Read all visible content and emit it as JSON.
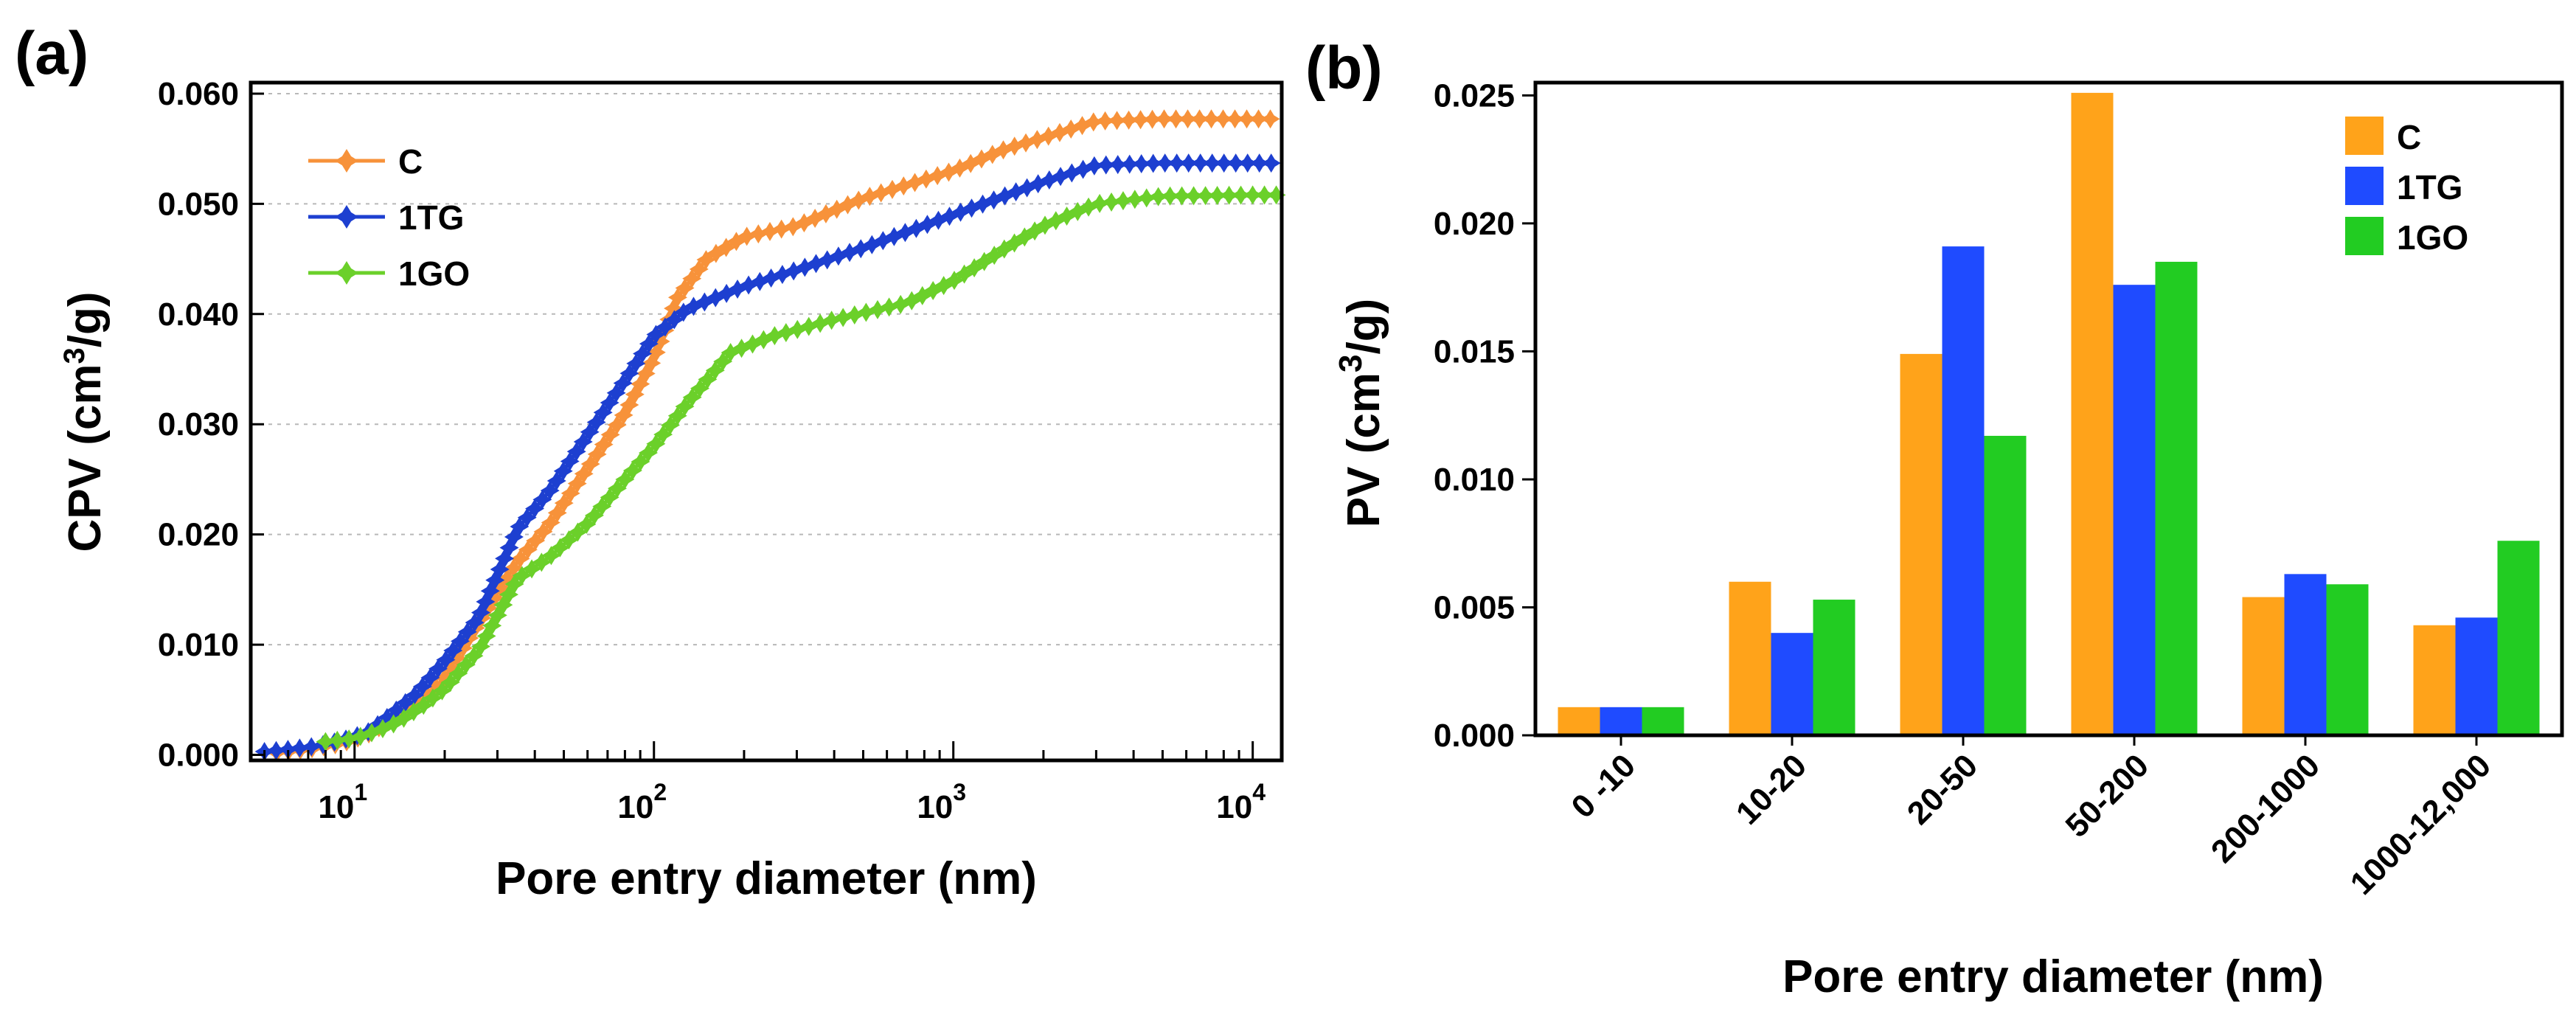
{
  "chart_data": [
    {
      "type": "line",
      "panel_label": "(a)",
      "xlabel": "Pore entry diameter (nm)",
      "ylabel_main": "CPV (cm",
      "ylabel_sup": "3",
      "ylabel_tail": "/g)",
      "x_scale": "log",
      "xlim": [
        4.5,
        12500
      ],
      "ylim": [
        -0.0005,
        0.061
      ],
      "x_ticks": [
        {
          "base": "10",
          "exp": "1",
          "value": 10
        },
        {
          "base": "10",
          "exp": "2",
          "value": 100
        },
        {
          "base": "10",
          "exp": "3",
          "value": 1000
        },
        {
          "base": "10",
          "exp": "4",
          "value": 10000
        }
      ],
      "y_ticks": [
        0.0,
        0.01,
        0.02,
        0.03,
        0.04,
        0.05,
        0.06
      ],
      "y_tick_labels": [
        "0.000",
        "0.010",
        "0.020",
        "0.030",
        "0.040",
        "0.050",
        "0.060"
      ],
      "grid": "horizontal dashed",
      "legend_position": "top-left",
      "series": [
        {
          "name": "C",
          "color": "#F7923A",
          "points": [
            [
              5.5,
              0.0002
            ],
            [
              7,
              0.0005
            ],
            [
              9,
              0.001
            ],
            [
              11,
              0.0018
            ],
            [
              13,
              0.003
            ],
            [
              16,
              0.0045
            ],
            [
              20,
              0.007
            ],
            [
              26,
              0.012
            ],
            [
              35,
              0.0175
            ],
            [
              45,
              0.021
            ],
            [
              60,
              0.026
            ],
            [
              80,
              0.031
            ],
            [
              100,
              0.036
            ],
            [
              120,
              0.0415
            ],
            [
              150,
              0.045
            ],
            [
              200,
              0.047
            ],
            [
              300,
              0.048
            ],
            [
              500,
              0.0505
            ],
            [
              1000,
              0.053
            ],
            [
              1500,
              0.055
            ],
            [
              2000,
              0.056
            ],
            [
              3000,
              0.0575
            ],
            [
              5000,
              0.0577
            ],
            [
              10000,
              0.0577
            ],
            [
              12000,
              0.0577
            ]
          ]
        },
        {
          "name": "1TG",
          "color": "#1D3FD0",
          "points": [
            [
              5,
              0.0003
            ],
            [
              6,
              0.0005
            ],
            [
              7.5,
              0.0008
            ],
            [
              9,
              0.0013
            ],
            [
              11,
              0.002
            ],
            [
              13,
              0.0035
            ],
            [
              16,
              0.0055
            ],
            [
              20,
              0.0085
            ],
            [
              26,
              0.0125
            ],
            [
              35,
              0.0205
            ],
            [
              45,
              0.024
            ],
            [
              60,
              0.029
            ],
            [
              80,
              0.034
            ],
            [
              100,
              0.038
            ],
            [
              130,
              0.0405
            ],
            [
              200,
              0.0425
            ],
            [
              300,
              0.044
            ],
            [
              500,
              0.046
            ],
            [
              1000,
              0.049
            ],
            [
              2000,
              0.052
            ],
            [
              3000,
              0.0535
            ],
            [
              5000,
              0.0537
            ],
            [
              10000,
              0.0537
            ],
            [
              12000,
              0.0537
            ]
          ]
        },
        {
          "name": "1GO",
          "color": "#6BD02A",
          "points": [
            [
              8,
              0.0012
            ],
            [
              10,
              0.0015
            ],
            [
              12,
              0.0022
            ],
            [
              14,
              0.003
            ],
            [
              17,
              0.0045
            ],
            [
              20,
              0.006
            ],
            [
              26,
              0.0095
            ],
            [
              35,
              0.016
            ],
            [
              45,
              0.018
            ],
            [
              60,
              0.021
            ],
            [
              80,
              0.025
            ],
            [
              100,
              0.028
            ],
            [
              130,
              0.032
            ],
            [
              180,
              0.0365
            ],
            [
              250,
              0.038
            ],
            [
              400,
              0.0395
            ],
            [
              700,
              0.041
            ],
            [
              1000,
              0.043
            ],
            [
              1500,
              0.046
            ],
            [
              2000,
              0.048
            ],
            [
              3000,
              0.05
            ],
            [
              5000,
              0.0507
            ],
            [
              10000,
              0.0508
            ],
            [
              12000,
              0.0508
            ]
          ]
        }
      ]
    },
    {
      "type": "bar",
      "panel_label": "(b)",
      "xlabel": "Pore entry diameter (nm)",
      "ylabel_main": "PV (cm",
      "ylabel_sup": "3",
      "ylabel_tail": "/g)",
      "ylim": [
        0,
        0.0255
      ],
      "y_ticks": [
        0.0,
        0.005,
        0.01,
        0.015,
        0.02,
        0.025
      ],
      "y_tick_labels": [
        "0.000",
        "0.005",
        "0.010",
        "0.015",
        "0.020",
        "0.025"
      ],
      "categories": [
        "0 -10",
        "10-20",
        "20-50",
        "50-200",
        "200-1000",
        "1000-12,000"
      ],
      "legend_position": "top-right",
      "series": [
        {
          "name": "C",
          "color": "#FFA31A",
          "values": [
            0.0011,
            0.006,
            0.0149,
            0.0251,
            0.0054,
            0.0043
          ]
        },
        {
          "name": "1TG",
          "color": "#1F4BFF",
          "values": [
            0.0011,
            0.004,
            0.0191,
            0.0176,
            0.0063,
            0.0046
          ]
        },
        {
          "name": "1GO",
          "color": "#22CC22",
          "values": [
            0.0011,
            0.0053,
            0.0117,
            0.0185,
            0.0059,
            0.0076
          ]
        }
      ]
    }
  ]
}
